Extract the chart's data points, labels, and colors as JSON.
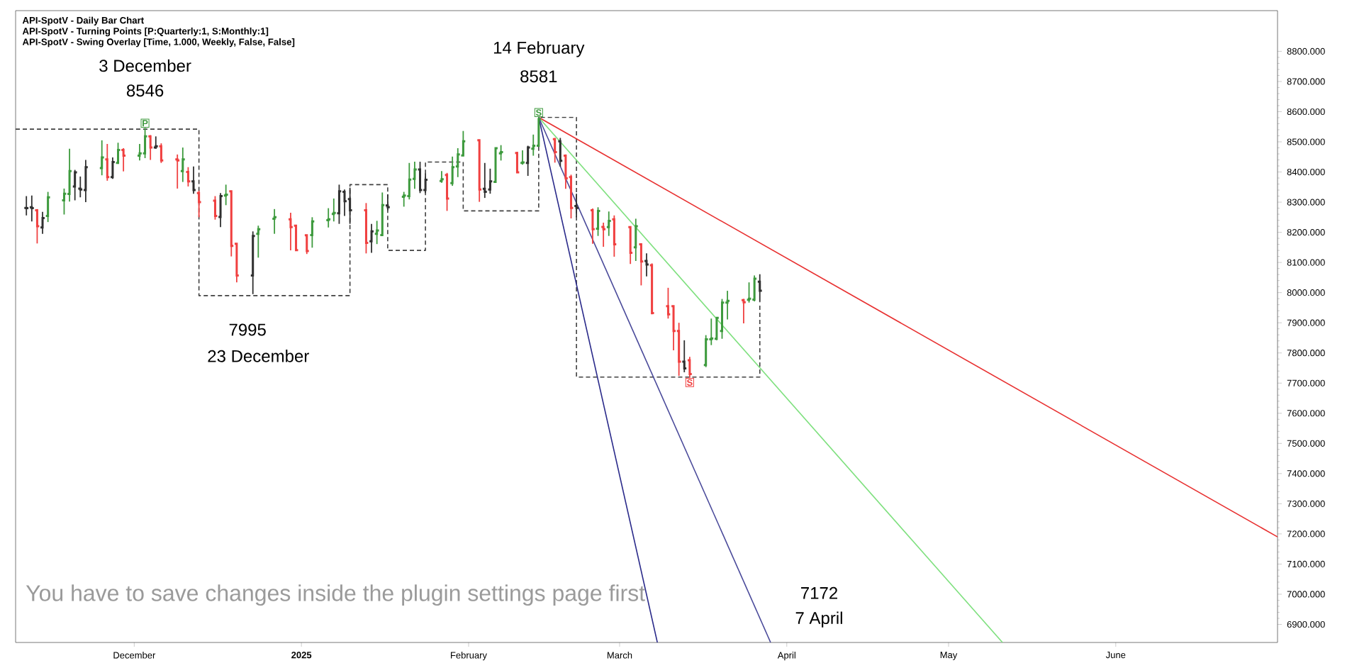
{
  "chart_data": {
    "type": "candlestick",
    "title": "API-SpotV - Daily Bar Chart",
    "subtitle": "API-SpotV - Turning Points [P:Quarterly:1, S:Monthly:1]",
    "x": [
      "2024-11-11",
      "2024-11-12",
      "2024-11-13",
      "2024-11-14",
      "2024-11-15",
      "2024-11-18",
      "2024-11-19",
      "2024-11-20",
      "2024-11-21",
      "2024-11-22",
      "2024-11-25",
      "2024-11-26",
      "2024-11-27",
      "2024-11-28",
      "2024-11-29",
      "2024-12-02",
      "2024-12-03",
      "2024-12-04",
      "2024-12-05",
      "2024-12-06",
      "2024-12-09",
      "2024-12-10",
      "2024-12-11",
      "2024-12-12",
      "2024-12-13",
      "2024-12-16",
      "2024-12-17",
      "2024-12-18",
      "2024-12-19",
      "2024-12-20",
      "2024-12-23",
      "2024-12-24",
      "2024-12-27",
      "2024-12-30",
      "2024-12-31",
      "2025-01-02",
      "2025-01-03",
      "2025-01-06",
      "2025-01-07",
      "2025-01-08",
      "2025-01-09",
      "2025-01-10",
      "2025-01-13",
      "2025-01-14",
      "2025-01-15",
      "2025-01-16",
      "2025-01-17",
      "2025-01-20",
      "2025-01-21",
      "2025-01-22",
      "2025-01-23",
      "2025-01-24",
      "2025-01-27",
      "2025-01-28",
      "2025-01-29",
      "2025-01-30",
      "2025-01-31",
      "2025-02-03",
      "2025-02-04",
      "2025-02-05",
      "2025-02-06",
      "2025-02-07",
      "2025-02-10",
      "2025-02-11",
      "2025-02-12",
      "2025-02-13",
      "2025-02-14",
      "2025-02-17",
      "2025-02-18",
      "2025-02-19",
      "2025-02-20",
      "2025-02-21",
      "2025-02-24",
      "2025-02-25",
      "2025-02-26",
      "2025-02-27",
      "2025-02-28",
      "2025-03-03",
      "2025-03-04",
      "2025-03-05",
      "2025-03-06",
      "2025-03-07",
      "2025-03-10",
      "2025-03-11",
      "2025-03-12",
      "2025-03-13",
      "2025-03-14",
      "2025-03-17",
      "2025-03-18",
      "2025-03-19",
      "2025-03-20",
      "2025-03-21",
      "2025-03-24",
      "2025-03-25",
      "2025-03-26",
      "2025-03-27"
    ],
    "ohlc": [
      [
        8281,
        8320,
        8256,
        8280
      ],
      [
        8283,
        8322,
        8236,
        8280
      ],
      [
        8273,
        8277,
        8163,
        8220
      ],
      [
        8216,
        8268,
        8195,
        8247
      ],
      [
        8254,
        8334,
        8234,
        8316
      ],
      [
        8306,
        8345,
        8259,
        8328
      ],
      [
        8327,
        8477,
        8302,
        8403
      ],
      [
        8352,
        8407,
        8306,
        8399
      ],
      [
        8345,
        8385,
        8316,
        8342
      ],
      [
        8340,
        8440,
        8300,
        8416
      ],
      [
        8413,
        8505,
        8389,
        8448
      ],
      [
        8442,
        8493,
        8371,
        8383
      ],
      [
        8383,
        8448,
        8377,
        8433
      ],
      [
        8430,
        8497,
        8428,
        8473
      ],
      [
        8473,
        8479,
        8402,
        8454
      ],
      [
        8454,
        8493,
        8438,
        8462
      ],
      [
        8462,
        8546,
        8446,
        8518
      ],
      [
        8518,
        8522,
        8440,
        8481
      ],
      [
        8481,
        8518,
        8477,
        8485
      ],
      [
        8485,
        8495,
        8430,
        8438
      ],
      [
        8442,
        8458,
        8345,
        8438
      ],
      [
        8403,
        8481,
        8367,
        8442
      ],
      [
        8400,
        8416,
        8352,
        8369
      ],
      [
        8369,
        8418,
        8328,
        8340
      ],
      [
        8330,
        8338,
        8250,
        8300
      ],
      [
        8305,
        8320,
        8242,
        8254
      ],
      [
        8251,
        8330,
        8217,
        8320
      ],
      [
        8322,
        8358,
        8290,
        8325
      ],
      [
        8336,
        8336,
        8120,
        8155
      ],
      [
        8162,
        8162,
        8034,
        8057
      ],
      [
        8057,
        8203,
        7995,
        8188
      ],
      [
        8195,
        8222,
        8116,
        8210
      ],
      [
        8245,
        8277,
        8195,
        8250
      ],
      [
        8243,
        8265,
        8140,
        8217
      ],
      [
        8222,
        8224,
        8138,
        8141
      ],
      [
        8190,
        8192,
        8128,
        8138
      ],
      [
        8191,
        8250,
        8149,
        8236
      ],
      [
        8240,
        8280,
        8216,
        8243
      ],
      [
        8261,
        8312,
        8236,
        8264
      ],
      [
        8263,
        8358,
        8228,
        8336
      ],
      [
        8334,
        8342,
        8254,
        8303
      ],
      [
        8310,
        8348,
        8228,
        8273
      ],
      [
        8273,
        8297,
        8130,
        8165
      ],
      [
        8170,
        8228,
        8132,
        8203
      ],
      [
        8195,
        8238,
        8161,
        8206
      ],
      [
        8191,
        8332,
        8188,
        8290
      ],
      [
        8289,
        8326,
        8273,
        8283
      ],
      [
        8318,
        8334,
        8285,
        8322
      ],
      [
        8320,
        8430,
        8309,
        8375
      ],
      [
        8377,
        8434,
        8344,
        8408
      ],
      [
        8408,
        8434,
        8330,
        8340
      ],
      [
        8340,
        8395,
        8330,
        8374
      ],
      [
        8370,
        8403,
        8364,
        8376
      ],
      [
        8390,
        8397,
        8271,
        8312
      ],
      [
        8363,
        8451,
        8354,
        8416
      ],
      [
        8418,
        8479,
        8383,
        8458
      ],
      [
        8455,
        8536,
        8454,
        8502
      ],
      [
        8505,
        8505,
        8301,
        8342
      ],
      [
        8344,
        8430,
        8314,
        8334
      ],
      [
        8342,
        8411,
        8328,
        8369
      ],
      [
        8367,
        8481,
        8366,
        8479
      ],
      [
        8462,
        8489,
        8438,
        8466
      ],
      [
        8463,
        8467,
        8397,
        8399
      ],
      [
        8430,
        8472,
        8424,
        8432
      ],
      [
        8430,
        8487,
        8387,
        8481
      ],
      [
        8477,
        8524,
        8454,
        8487
      ],
      [
        8487,
        8581,
        8485,
        8575
      ],
      [
        8509,
        8513,
        8431,
        8466
      ],
      [
        8502,
        8513,
        8418,
        8437
      ],
      [
        8454,
        8458,
        8344,
        8379
      ],
      [
        8383,
        8391,
        8246,
        8281
      ],
      [
        8287,
        8328,
        8250,
        8281
      ],
      [
        8273,
        8279,
        8162,
        8210
      ],
      [
        8212,
        8283,
        8188,
        8271
      ],
      [
        8218,
        8232,
        8152,
        8210
      ],
      [
        8217,
        8269,
        8188,
        8238
      ],
      [
        8243,
        8256,
        8119,
        8160
      ],
      [
        8217,
        8218,
        8095,
        8132
      ],
      [
        8150,
        8245,
        8105,
        8220
      ],
      [
        8160,
        8163,
        8024,
        8103
      ],
      [
        8105,
        8130,
        8054,
        8093
      ],
      [
        8091,
        8097,
        7928,
        7932
      ],
      [
        7955,
        8016,
        7914,
        7928
      ],
      [
        7955,
        7957,
        7809,
        7873
      ],
      [
        7873,
        7900,
        7724,
        7771
      ],
      [
        7771,
        7842,
        7736,
        7749
      ],
      [
        7776,
        7787,
        7718,
        7730
      ],
      [
        7760,
        7859,
        7753,
        7845
      ],
      [
        7845,
        7914,
        7826,
        7848
      ],
      [
        7847,
        7918,
        7842,
        7916
      ],
      [
        7873,
        7979,
        7847,
        7967
      ],
      [
        7967,
        8006,
        7911,
        7973
      ],
      [
        7975,
        7979,
        7898,
        7968
      ],
      [
        7976,
        8034,
        7967,
        7980
      ],
      [
        7977,
        8057,
        7971,
        8046
      ],
      [
        8036,
        8061,
        7969,
        8006
      ]
    ],
    "colors": [
      "#303030",
      "#303030",
      "#f04040",
      "#303030",
      "#3d9a3d",
      "#3d9a3d",
      "#3d9a3d",
      "#303030",
      "#303030",
      "#303030",
      "#3d9a3d",
      "#f04040",
      "#303030",
      "#3d9a3d",
      "#f04040",
      "#3d9a3d",
      "#3d9a3d",
      "#f04040",
      "#303030",
      "#f04040",
      "#f04040",
      "#3d9a3d",
      "#f04040",
      "#303030",
      "#f04040",
      "#f04040",
      "#303030",
      "#3d9a3d",
      "#f04040",
      "#f04040",
      "#303030",
      "#3d9a3d",
      "#3d9a3d",
      "#f04040",
      "#f04040",
      "#f04040",
      "#3d9a3d",
      "#3d9a3d",
      "#3d9a3d",
      "#303030",
      "#303030",
      "#303030",
      "#f04040",
      "#303030",
      "#3d9a3d",
      "#3d9a3d",
      "#303030",
      "#3d9a3d",
      "#3d9a3d",
      "#3d9a3d",
      "#303030",
      "#303030",
      "#3d9a3d",
      "#f04040",
      "#3d9a3d",
      "#3d9a3d",
      "#3d9a3d",
      "#f04040",
      "#303030",
      "#303030",
      "#3d9a3d",
      "#3d9a3d",
      "#f04040",
      "#3d9a3d",
      "#303030",
      "#3d9a3d",
      "#3d9a3d",
      "#f04040",
      "#303030",
      "#f04040",
      "#f04040",
      "#303030",
      "#f04040",
      "#3d9a3d",
      "#f04040",
      "#3d9a3d",
      "#f04040",
      "#f04040",
      "#3d9a3d",
      "#f04040",
      "#303030",
      "#f04040",
      "#f04040",
      "#f04040",
      "#f04040",
      "#303030",
      "#f04040",
      "#3d9a3d",
      "#3d9a3d",
      "#3d9a3d",
      "#3d9a3d",
      "#3d9a3d",
      "#f04040",
      "#3d9a3d",
      "#3d9a3d",
      "#303030"
    ],
    "series": [
      {
        "type": "line",
        "color": "#404040",
        "line_style": "dashed",
        "x": [
          "2024-11-09",
          "2024-12-13",
          "2024-12-13",
          "2025-01-10",
          "2025-01-10",
          "2025-01-17",
          "2025-01-17",
          "2025-01-24",
          "2025-01-24",
          "2025-01-31",
          "2025-01-31",
          "2025-02-14",
          "2025-02-14",
          "2025-02-21",
          "2025-02-21",
          "2025-03-27",
          "2025-03-27"
        ],
        "values": [
          8542,
          8542,
          7990,
          7990,
          8358,
          8358,
          8140,
          8140,
          8433,
          8433,
          8271,
          8271,
          8581,
          8581,
          7720,
          7720,
          7967
        ]
      },
      {
        "type": "line",
        "color": "#e83030",
        "x": [
          "2025-02-14",
          "2025-07-01"
        ],
        "values": [
          8581,
          7190
        ]
      },
      {
        "type": "line",
        "color": "#7ee07e",
        "x": [
          "2025-02-14",
          "2025-05-11"
        ],
        "values": [
          8581,
          6840
        ]
      },
      {
        "type": "line",
        "color": "#2a2a8a",
        "x": [
          "2025-02-14",
          "2025-03-08"
        ],
        "values": [
          8581,
          6840
        ]
      },
      {
        "type": "line",
        "color": "#4a4a9a",
        "x": [
          "2025-02-14",
          "2025-03-29"
        ],
        "values": [
          8581,
          6840
        ]
      }
    ],
    "annotations": [
      "API-SpotV - Swing Overlay [Time, 1.000, Weekly, False, False]",
      "3 December",
      "8546",
      "14 February",
      "8581",
      "7995",
      "23 December",
      "7172",
      "7 April",
      "You have to save changes inside the plugin settings page first",
      {
        "text": "P",
        "x": "2024-12-03",
        "y": 8546
      },
      {
        "text": "S",
        "x": "2025-02-14",
        "y": 8581
      },
      {
        "text": "S",
        "x": "2025-03-14",
        "y": 7718
      }
    ],
    "xlim": [
      "2024-11-09",
      "2025-07-01"
    ],
    "xticks": [
      {
        "value": "2024-12-01",
        "label": "December"
      },
      {
        "value": "2025-01-01",
        "label": "**2025**"
      },
      {
        "value": "2025-02-01",
        "label": "February"
      },
      {
        "value": "2025-03-01",
        "label": "March"
      },
      {
        "value": "2025-04-01",
        "label": "April"
      },
      {
        "value": "2025-05-01",
        "label": "May"
      },
      {
        "value": "2025-06-01",
        "label": "June"
      }
    ],
    "ylim": [
      6840,
      8935
    ],
    "yticks": [
      {
        "value": 6900,
        "label": "6900.000"
      },
      {
        "value": 7000,
        "label": "7000.000"
      },
      {
        "value": 7100,
        "label": "7100.000"
      },
      {
        "value": 7200,
        "label": "7200.000"
      },
      {
        "value": 7300,
        "label": "7300.000"
      },
      {
        "value": 7400,
        "label": "7400.000"
      },
      {
        "value": 7500,
        "label": "7500.000"
      },
      {
        "value": 7600,
        "label": "7600.000"
      },
      {
        "value": 7700,
        "label": "7700.000"
      },
      {
        "value": 7800,
        "label": "7800.000"
      },
      {
        "value": 7900,
        "label": "7900.000"
      },
      {
        "value": 8000,
        "label": "8000.000"
      },
      {
        "value": 8100,
        "label": "8100.000"
      },
      {
        "value": 8200,
        "label": "8200.000"
      },
      {
        "value": 8300,
        "label": "8300.000"
      },
      {
        "value": 8400,
        "label": "8400.000"
      },
      {
        "value": 8500,
        "label": "8500.000"
      },
      {
        "value": 8600,
        "label": "8600.000"
      },
      {
        "value": 8700,
        "label": "8700.000"
      },
      {
        "value": 8800,
        "label": "8800.000"
      }
    ]
  }
}
